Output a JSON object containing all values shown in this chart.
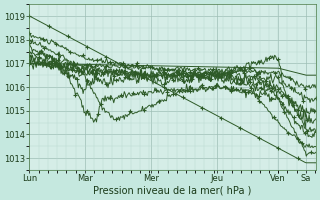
{
  "background_color": "#c5e8df",
  "plot_bg_color": "#d5ede7",
  "grid_color_major": "#9dbfb5",
  "grid_color_minor": "#b8d5ce",
  "line_color": "#2d5a27",
  "ylim": [
    1012.5,
    1019.5
  ],
  "ylabel_ticks": [
    1013,
    1014,
    1015,
    1016,
    1017,
    1018,
    1019
  ],
  "xlabel": "Pression niveau de la mer( hPa )",
  "day_labels": [
    "Lun",
    "Mar",
    "Mer",
    "Jeu",
    "Ven",
    "Sa"
  ],
  "day_tick_norm": [
    0.0,
    0.193,
    0.425,
    0.655,
    0.868,
    0.965
  ],
  "font_size_label": 7,
  "font_size_tick": 6,
  "marker_size": 3.0,
  "line_width": 0.7
}
